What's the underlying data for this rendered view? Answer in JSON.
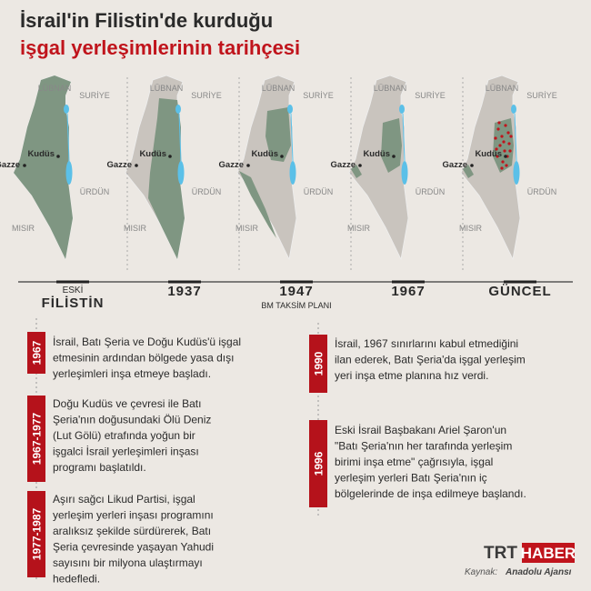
{
  "title": {
    "line1": "İsrail'in Filistin'de kurduğu",
    "line2": "işgal yerleşimlerinin tarihçesi"
  },
  "map_labels": {
    "north": "LÜBNAN",
    "northeast": "SURİYE",
    "city1": "Kudüs",
    "city2": "Gazze",
    "east": "ÜRDÜN",
    "southwest": "MISIR"
  },
  "periods": [
    {
      "top": "ESKİ",
      "label": "FİLİSTİN"
    },
    {
      "label": "1937"
    },
    {
      "label": "1947",
      "sub": "BM TAKSİM PLANI"
    },
    {
      "label": "1967"
    },
    {
      "label": "GÜNCEL"
    }
  ],
  "events_left": [
    {
      "year": "1967",
      "lines": [
        "İsrail, Batı Şeria ve Doğu Kudüs'ü işgal",
        "etmesinin ardından bölgede yasa dışı",
        "yerleşimleri inşa etmeye başladı."
      ]
    },
    {
      "year": "1967-1977",
      "lines": [
        "Doğu Kudüs ve çevresi ile Batı",
        "Şeria'nın doğusundaki Ölü Deniz",
        "(Lut Gölü) etrafında yoğun bir",
        "işgalci İsrail yerleşimleri inşası",
        "programı başlatıldı."
      ]
    },
    {
      "year": "1977-1987",
      "lines": [
        "Aşırı sağcı Likud Partisi, işgal",
        "yerleşim yerleri inşası programını",
        "aralıksız şekilde sürdürerek, Batı",
        "Şeria çevresinde yaşayan Yahudi",
        "sayısını bir milyona ulaştırmayı",
        "hedefledi."
      ]
    }
  ],
  "events_right": [
    {
      "year": "1990",
      "lines": [
        "İsrail, 1967 sınırlarını kabul etmediğini",
        "ilan ederek, Batı Şeria'da işgal yerleşim",
        "yeri inşa etme planına hız verdi."
      ]
    },
    {
      "year": "1996",
      "lines": [
        "Eski İsrail Başbakanı Ariel Şaron'un",
        "\"Batı Şeria'nın her tarafında yerleşim",
        "birimi inşa etme\" çağrısıyla, işgal",
        "yerleşim yerleri Batı Şeria'nın iç",
        "bölgelerinde de inşa edilmeye başlandı."
      ]
    }
  ],
  "logo": {
    "a": "TRT",
    "b": "HABER"
  },
  "source": {
    "label": "Kaynak:",
    "name": "Anadolu Ajansı"
  }
}
